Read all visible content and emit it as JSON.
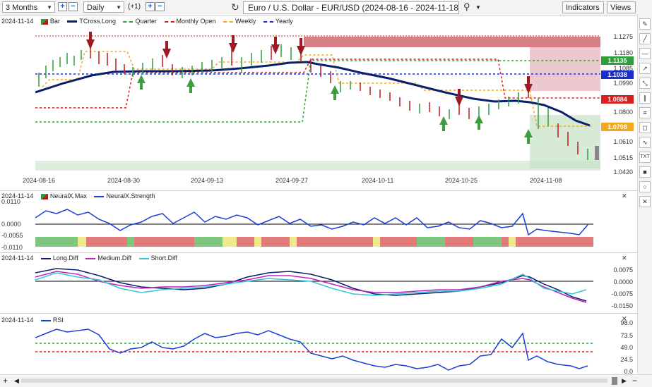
{
  "toolbar": {
    "range": "3 Months",
    "interval": "Daily",
    "step": "(+1)",
    "title": "Euro / U.S. Dollar - EUR/USD (2024-08-16 - 2024-11-18)",
    "indicators_label": "Indicators",
    "views_label": "Views"
  },
  "main_panel": {
    "date": "2024-11-14",
    "legend": [
      "Bar",
      "TCross.Long",
      "Quarter",
      "Monthly Open",
      "Weekly",
      "Yearly"
    ],
    "price_labels": [
      "1.1275",
      "1.1180",
      "1.1085",
      "1.0990",
      "1.0800",
      "1.0610",
      "1.0515",
      "1.0420"
    ],
    "price_tags": [
      {
        "value": "1.1135",
        "color": "#2e9e3a"
      },
      {
        "value": "1.1038",
        "color": "#1a2ecc"
      },
      {
        "value": "1.0884",
        "color": "#d81e1e"
      },
      {
        "value": "1.0708",
        "color": "#f4a81d"
      }
    ],
    "x_labels": [
      "2024-08-16",
      "2024-08-30",
      "2024-09-13",
      "2024-09-27",
      "2024-10-11",
      "2024-10-25",
      "2024-11-08"
    ]
  },
  "neural_panel": {
    "date": "2024-11-14",
    "legend": [
      "NeuralX.Max",
      "NeuralX.Strength"
    ],
    "labels": [
      "0.0110",
      "0.0000",
      "-0.0055",
      "-0.0110"
    ]
  },
  "diff_panel": {
    "date": "2024-11-14",
    "legend": [
      "Long.Diff",
      "Medium.Diff",
      "Short.Diff"
    ],
    "labels": [
      "0.0075",
      "0.0000",
      "-0.0075",
      "-0.0150"
    ]
  },
  "rsi_panel": {
    "date": "2024-11-14",
    "legend": [
      "RSI"
    ],
    "labels": [
      "98.0",
      "73.5",
      "49.0",
      "24.5",
      "0.0"
    ]
  },
  "tools": [
    "pencil-icon",
    "line-icon",
    "hline-icon",
    "arrow-icon",
    "measure-icon",
    "channel-icon",
    "fib-icon",
    "callout-icon",
    "curve-icon",
    "text-icon",
    "rect-icon",
    "circle-icon",
    "close-icon"
  ]
}
